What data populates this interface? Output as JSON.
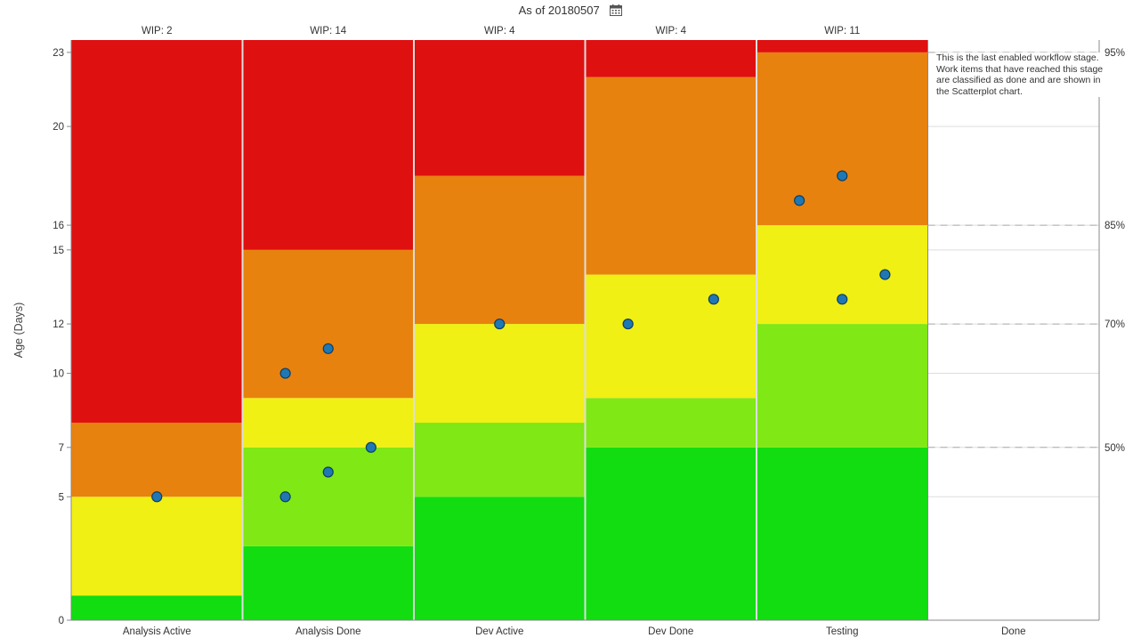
{
  "header": {
    "title": "As of 20180507",
    "calendar_icon": "calendar-icon"
  },
  "note": {
    "text": "This is the last enabled workflow stage. Work items that have reached this stage are classified as done and are shown in the Scatterplot chart."
  },
  "chart_data": {
    "type": "aging-wip",
    "ylabel": "Age (Days)",
    "ylim": [
      0,
      23.5
    ],
    "y_ticks": [
      0,
      5,
      7,
      10,
      12,
      15,
      16,
      20,
      23
    ],
    "percentiles": [
      {
        "label": "50%",
        "value": 7
      },
      {
        "label": "70%",
        "value": 12
      },
      {
        "label": "85%",
        "value": 16
      },
      {
        "label": "95%",
        "value": 23
      }
    ],
    "right_gridlines": [
      5,
      7,
      10,
      12,
      15,
      16,
      20,
      23
    ],
    "band_colors": [
      "#11dd11",
      "#80e815",
      "#f0f014",
      "#e8820f",
      "#df1010"
    ],
    "stages": [
      {
        "name": "Analysis Active",
        "wip_label": "WIP: 2",
        "bands": [
          1,
          1,
          5,
          8,
          23.5
        ],
        "items": [
          5
        ]
      },
      {
        "name": "Analysis Done",
        "wip_label": "WIP: 14",
        "bands": [
          3,
          7,
          9,
          15,
          23.5
        ],
        "items": [
          10,
          11,
          7,
          6,
          5
        ]
      },
      {
        "name": "Dev Active",
        "wip_label": "WIP: 4",
        "bands": [
          5,
          8,
          12,
          18,
          23.5
        ],
        "items": [
          12
        ]
      },
      {
        "name": "Dev Done",
        "wip_label": "WIP: 4",
        "bands": [
          7,
          9,
          14,
          22,
          23.5
        ],
        "items": [
          12,
          13
        ]
      },
      {
        "name": "Testing",
        "wip_label": "WIP: 11",
        "bands": [
          7,
          12,
          16,
          23,
          23.5
        ],
        "items": [
          17,
          18,
          13,
          14
        ]
      },
      {
        "name": "Done",
        "wip_label": "",
        "bands": [],
        "items": []
      }
    ],
    "item_offsets": [
      [
        0
      ],
      [
        -0.25,
        0,
        0.25,
        0,
        -0.25
      ],
      [
        0
      ],
      [
        -0.25,
        0.25
      ],
      [
        -0.25,
        0.0,
        0.0,
        0.25
      ]
    ]
  }
}
